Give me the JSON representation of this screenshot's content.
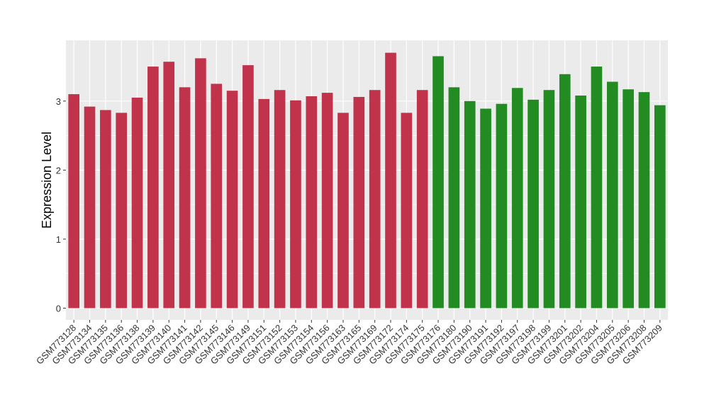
{
  "chart_data": {
    "type": "bar",
    "title": "",
    "xlabel": "",
    "ylabel": "Expression Level",
    "ylim": [
      -0.17,
      3.88
    ],
    "yticks": [
      0,
      1,
      2,
      3
    ],
    "grid": true,
    "legend": "none",
    "colors": {
      "group1": "#c0334a",
      "group2": "#228b22",
      "panel": "#ebebeb",
      "gridline": "#ffffff"
    },
    "categories": [
      "GSM773128",
      "GSM773134",
      "GSM773135",
      "GSM773136",
      "GSM773138",
      "GSM773139",
      "GSM773140",
      "GSM773141",
      "GSM773142",
      "GSM773145",
      "GSM773146",
      "GSM773149",
      "GSM773151",
      "GSM773152",
      "GSM773153",
      "GSM773154",
      "GSM773156",
      "GSM773163",
      "GSM773165",
      "GSM773169",
      "GSM773172",
      "GSM773174",
      "GSM773175",
      "GSM773176",
      "GSM773180",
      "GSM773190",
      "GSM773191",
      "GSM773192",
      "GSM773197",
      "GSM773198",
      "GSM773199",
      "GSM773201",
      "GSM773202",
      "GSM773204",
      "GSM773205",
      "GSM773206",
      "GSM773208",
      "GSM773209"
    ],
    "values": [
      3.1,
      2.92,
      2.87,
      2.83,
      3.05,
      3.5,
      3.57,
      3.2,
      3.62,
      3.25,
      3.15,
      3.52,
      3.03,
      3.16,
      3.01,
      3.07,
      3.12,
      2.83,
      3.06,
      3.16,
      3.7,
      2.83,
      3.16,
      3.65,
      3.2,
      3.0,
      2.89,
      2.96,
      3.19,
      3.02,
      3.16,
      3.39,
      3.08,
      3.5,
      3.28,
      3.17,
      3.13,
      2.94
    ],
    "groups": [
      1,
      1,
      1,
      1,
      1,
      1,
      1,
      1,
      1,
      1,
      1,
      1,
      1,
      1,
      1,
      1,
      1,
      1,
      1,
      1,
      1,
      1,
      1,
      2,
      2,
      2,
      2,
      2,
      2,
      2,
      2,
      2,
      2,
      2,
      2,
      2,
      2,
      2
    ]
  }
}
